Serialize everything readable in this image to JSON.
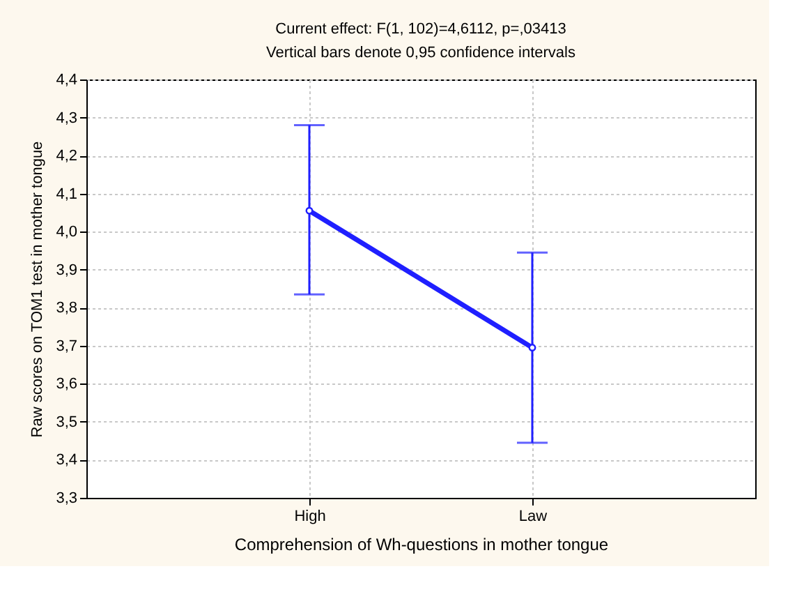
{
  "chart_data": {
    "type": "line",
    "title": "Current effect: F(1, 102)=4,6112, p=,03413",
    "subtitle": "Vertical bars denote 0,95 confidence intervals",
    "xlabel": "Comprehension of Wh-questions in mother tongue",
    "ylabel": "Raw scores on TOM1 test in mother tongue",
    "categories": [
      "High",
      "Law"
    ],
    "series": [
      {
        "color": "#1f1fff",
        "values": [
          4.055,
          3.695
        ],
        "errors": [
          [
            3.835,
            4.28
          ],
          [
            3.445,
            3.945
          ]
        ]
      }
    ],
    "ylim": [
      3.3,
      4.4
    ],
    "yticks": [
      {
        "value": 3.3,
        "label": "3,3"
      },
      {
        "value": 3.4,
        "label": "3,4"
      },
      {
        "value": 3.5,
        "label": "3,5"
      },
      {
        "value": 3.6,
        "label": "3,6"
      },
      {
        "value": 3.7,
        "label": "3,7"
      },
      {
        "value": 3.8,
        "label": "3,8"
      },
      {
        "value": 3.9,
        "label": "3,9"
      },
      {
        "value": 4.0,
        "label": "4,0"
      },
      {
        "value": 4.1,
        "label": "4,1"
      },
      {
        "value": 4.2,
        "label": "4,2"
      },
      {
        "value": 4.3,
        "label": "4,3"
      },
      {
        "value": 4.4,
        "label": "4,4"
      }
    ],
    "grid": true,
    "marker": "circle",
    "line_style": "solid"
  }
}
